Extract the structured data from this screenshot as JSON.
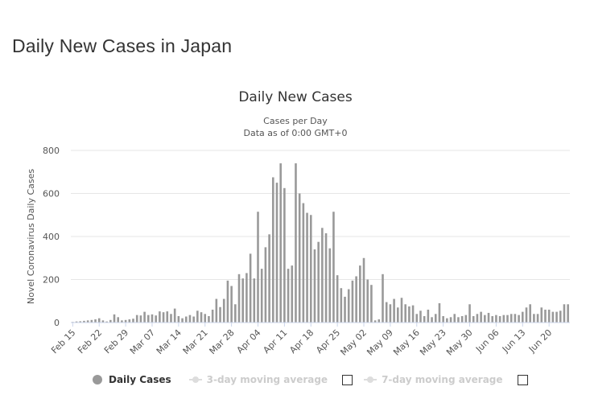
{
  "page": {
    "title": "Daily New Cases in Japan"
  },
  "chart_data": {
    "type": "bar",
    "title": "Daily New Cases",
    "subtitle_lines": [
      "Cases per Day",
      "Data as of 0:00 GMT+0"
    ],
    "xlabel": "",
    "ylabel": "Novel Coronavirus Daily Cases",
    "ylim": [
      0,
      800
    ],
    "yticks": [
      0,
      200,
      400,
      600,
      800
    ],
    "grid": true,
    "legend_position": "bottom",
    "bar_color": "#999999",
    "x_tick_labels": [
      "Feb 15",
      "Feb 22",
      "Feb 29",
      "Mar 07",
      "Mar 14",
      "Mar 21",
      "Mar 28",
      "Apr 04",
      "Apr 11",
      "Apr 18",
      "Apr 25",
      "May 02",
      "May 09",
      "May 16",
      "May 23",
      "May 30",
      "Jun 06",
      "Jun 13",
      "Jun 20"
    ],
    "x_tick_every": 7,
    "categories": [
      "Feb 15",
      "Feb 16",
      "Feb 17",
      "Feb 18",
      "Feb 19",
      "Feb 20",
      "Feb 21",
      "Feb 22",
      "Feb 23",
      "Feb 24",
      "Feb 25",
      "Feb 26",
      "Feb 27",
      "Feb 28",
      "Feb 29",
      "Mar 01",
      "Mar 02",
      "Mar 03",
      "Mar 04",
      "Mar 05",
      "Mar 06",
      "Mar 07",
      "Mar 08",
      "Mar 09",
      "Mar 10",
      "Mar 11",
      "Mar 12",
      "Mar 13",
      "Mar 14",
      "Mar 15",
      "Mar 16",
      "Mar 17",
      "Mar 18",
      "Mar 19",
      "Mar 20",
      "Mar 21",
      "Mar 22",
      "Mar 23",
      "Mar 24",
      "Mar 25",
      "Mar 26",
      "Mar 27",
      "Mar 28",
      "Mar 29",
      "Mar 30",
      "Mar 31",
      "Apr 01",
      "Apr 02",
      "Apr 03",
      "Apr 04",
      "Apr 05",
      "Apr 06",
      "Apr 07",
      "Apr 08",
      "Apr 09",
      "Apr 10",
      "Apr 11",
      "Apr 12",
      "Apr 13",
      "Apr 14",
      "Apr 15",
      "Apr 16",
      "Apr 17",
      "Apr 18",
      "Apr 19",
      "Apr 20",
      "Apr 21",
      "Apr 22",
      "Apr 23",
      "Apr 24",
      "Apr 25",
      "Apr 26",
      "Apr 27",
      "Apr 28",
      "Apr 29",
      "Apr 30",
      "May 01",
      "May 02",
      "May 03",
      "May 04",
      "May 05",
      "May 06",
      "May 07",
      "May 08",
      "May 09",
      "May 10",
      "May 11",
      "May 12",
      "May 13",
      "May 14",
      "May 15",
      "May 16",
      "May 17",
      "May 18",
      "May 19",
      "May 20",
      "May 21",
      "May 22",
      "May 23",
      "May 24",
      "May 25",
      "May 26",
      "May 27",
      "May 28",
      "May 29",
      "May 30",
      "May 31",
      "Jun 01",
      "Jun 02",
      "Jun 03",
      "Jun 04",
      "Jun 05",
      "Jun 06",
      "Jun 07",
      "Jun 08",
      "Jun 09",
      "Jun 10",
      "Jun 11",
      "Jun 12",
      "Jun 13",
      "Jun 14",
      "Jun 15",
      "Jun 16",
      "Jun 17",
      "Jun 18",
      "Jun 19",
      "Jun 20",
      "Jun 21",
      "Jun 22",
      "Jun 23",
      "Jun 24",
      "Jun 25"
    ],
    "series": [
      {
        "name": "Daily Cases",
        "values": [
          3,
          5,
          6,
          8,
          10,
          12,
          15,
          20,
          10,
          5,
          12,
          38,
          25,
          10,
          12,
          15,
          18,
          35,
          33,
          50,
          35,
          38,
          33,
          52,
          48,
          52,
          40,
          65,
          30,
          20,
          28,
          35,
          28,
          55,
          48,
          40,
          30,
          60,
          110,
          72,
          110,
          195,
          170,
          85,
          225,
          205,
          230,
          320,
          205,
          515,
          250,
          350,
          410,
          675,
          650,
          740,
          625,
          250,
          265,
          740,
          600,
          555,
          510,
          500,
          340,
          375,
          440,
          415,
          345,
          515,
          220,
          160,
          120,
          155,
          195,
          215,
          265,
          300,
          200,
          175,
          10,
          15,
          225,
          95,
          85,
          110,
          70,
          115,
          85,
          75,
          80,
          40,
          55,
          30,
          60,
          25,
          40,
          90,
          30,
          20,
          25,
          40,
          25,
          30,
          35,
          85,
          30,
          40,
          50,
          35,
          45,
          30,
          35,
          30,
          35,
          35,
          40,
          40,
          35,
          50,
          70,
          85,
          40,
          40,
          70,
          60,
          60,
          50,
          50,
          55,
          85,
          85
        ]
      }
    ]
  },
  "legend": {
    "items": [
      {
        "label": "Daily Cases",
        "active": true
      },
      {
        "label": "3-day moving average",
        "active": false
      },
      {
        "label": "7-day moving average",
        "active": false
      }
    ]
  }
}
